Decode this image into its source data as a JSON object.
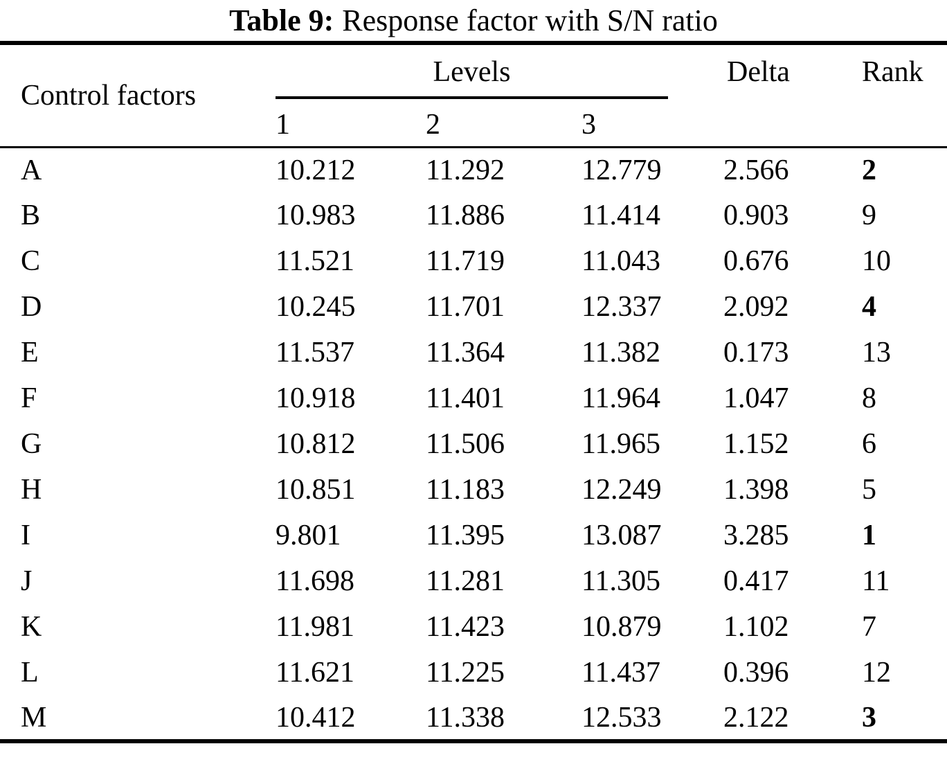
{
  "title": {
    "prefix": "Table 9:",
    "text": "Response factor with S/N ratio"
  },
  "table": {
    "col_factor": "Control factors",
    "col_levels": "Levels",
    "level_headers": [
      "1",
      "2",
      "3"
    ],
    "col_delta": "Delta",
    "col_rank": "Rank",
    "rows": [
      {
        "factor": "A",
        "l1": "10.212",
        "l2": "11.292",
        "l3": "12.779",
        "delta": "2.566",
        "rank": "2",
        "rank_bold": true
      },
      {
        "factor": "B",
        "l1": "10.983",
        "l2": "11.886",
        "l3": "11.414",
        "delta": "0.903",
        "rank": "9",
        "rank_bold": false
      },
      {
        "factor": "C",
        "l1": "11.521",
        "l2": "11.719",
        "l3": "11.043",
        "delta": "0.676",
        "rank": "10",
        "rank_bold": false
      },
      {
        "factor": "D",
        "l1": "10.245",
        "l2": "11.701",
        "l3": "12.337",
        "delta": "2.092",
        "rank": "4",
        "rank_bold": true
      },
      {
        "factor": "E",
        "l1": "11.537",
        "l2": "11.364",
        "l3": "11.382",
        "delta": "0.173",
        "rank": "13",
        "rank_bold": false
      },
      {
        "factor": "F",
        "l1": "10.918",
        "l2": "11.401",
        "l3": "11.964",
        "delta": "1.047",
        "rank": "8",
        "rank_bold": false
      },
      {
        "factor": "G",
        "l1": "10.812",
        "l2": "11.506",
        "l3": "11.965",
        "delta": "1.152",
        "rank": "6",
        "rank_bold": false
      },
      {
        "factor": "H",
        "l1": "10.851",
        "l2": "11.183",
        "l3": "12.249",
        "delta": "1.398",
        "rank": "5",
        "rank_bold": false
      },
      {
        "factor": "I",
        "l1": "9.801",
        "l2": "11.395",
        "l3": "13.087",
        "delta": "3.285",
        "rank": "1",
        "rank_bold": true
      },
      {
        "factor": "J",
        "l1": "11.698",
        "l2": "11.281",
        "l3": "11.305",
        "delta": "0.417",
        "rank": "11",
        "rank_bold": false
      },
      {
        "factor": "K",
        "l1": "11.981",
        "l2": "11.423",
        "l3": "10.879",
        "delta": "1.102",
        "rank": "7",
        "rank_bold": false
      },
      {
        "factor": "L",
        "l1": "11.621",
        "l2": "11.225",
        "l3": "11.437",
        "delta": "0.396",
        "rank": "12",
        "rank_bold": false
      },
      {
        "factor": "M",
        "l1": "10.412",
        "l2": "11.338",
        "l3": "12.533",
        "delta": "2.122",
        "rank": "3",
        "rank_bold": true
      }
    ]
  },
  "colors": {
    "text": "#000000",
    "background": "#ffffff",
    "rule": "#000000"
  }
}
